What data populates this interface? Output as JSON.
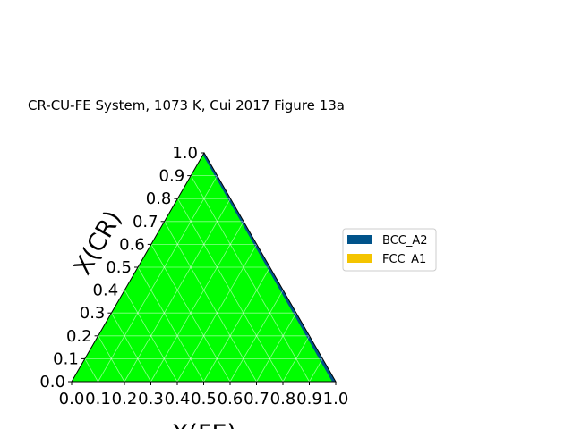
{
  "chart_data": {
    "type": "ternary",
    "title": "CR-CU-FE System, 1073 K, Cui 2017 Figure 13a",
    "xlabel": "X(FE)",
    "ylabel": "X(CR)",
    "xlim": [
      0,
      1
    ],
    "ylim": [
      0,
      1
    ],
    "xticks": [
      "0.0",
      "0.1",
      "0.2",
      "0.3",
      "0.4",
      "0.5",
      "0.6",
      "0.7",
      "0.8",
      "0.9",
      "1.0"
    ],
    "yticks": [
      "0.0",
      "0.1",
      "0.2",
      "0.3",
      "0.4",
      "0.5",
      "0.6",
      "0.7",
      "0.8",
      "0.9",
      "1.0"
    ],
    "grid": true,
    "legend_position": "right",
    "series": [
      {
        "name": "BCC_A2",
        "color": "#00538a"
      },
      {
        "name": "FCC_A1",
        "color": "#f4c400"
      }
    ],
    "fill_color": "#00ff00",
    "boundary_color": "#00538a"
  }
}
